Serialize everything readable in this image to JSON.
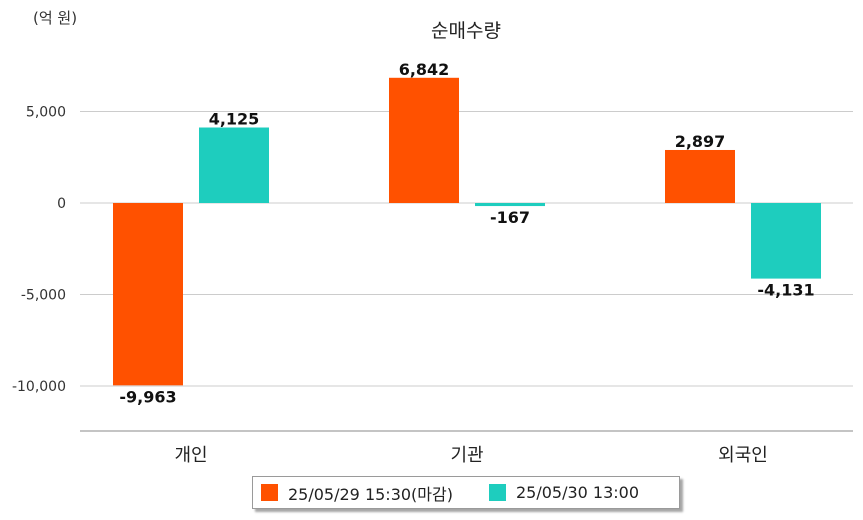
{
  "chart_data": {
    "type": "bar",
    "title": "순매수량",
    "unit_label": "(억 원)",
    "categories": [
      "개인",
      "기관",
      "외국인"
    ],
    "series": [
      {
        "name": "25/05/29 15:30(마감)",
        "color": "#FF5100",
        "values": [
          -9963,
          6842,
          2897
        ],
        "value_labels": [
          "-9,963",
          "6,842",
          "2,897"
        ]
      },
      {
        "name": "25/05/30 13:00",
        "color": "#1ECDBE",
        "values": [
          4125,
          -167,
          -4131
        ],
        "value_labels": [
          "4,125",
          "-167",
          "-4,131"
        ]
      }
    ],
    "yticks": [
      5000,
      0,
      -5000,
      -10000
    ],
    "ytick_labels": [
      "5,000",
      "0",
      "-5,000",
      "-10,000"
    ],
    "ylim": [
      -12500,
      8500
    ],
    "grid": true,
    "legend_position": "bottom"
  }
}
